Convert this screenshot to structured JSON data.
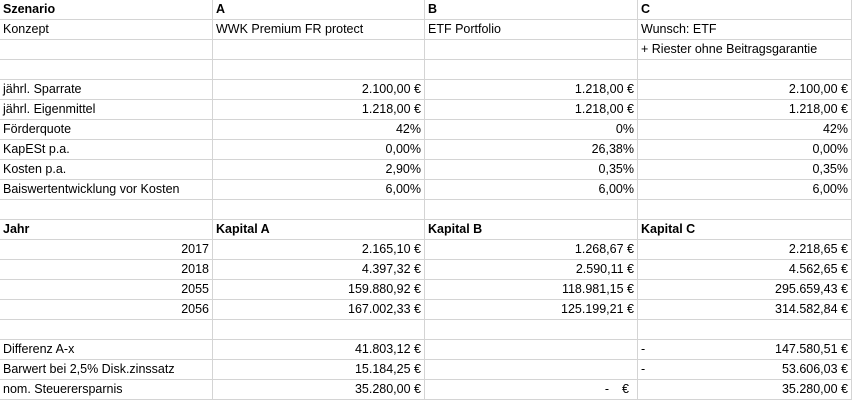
{
  "header": {
    "scenario_label": "Szenario",
    "scenario_a": "A",
    "scenario_b": "B",
    "scenario_c": "C",
    "concept_label": "Konzept",
    "concept_a": "WWK Premium FR protect",
    "concept_b": "ETF Portfolio",
    "concept_c": "Wunsch: ETF",
    "concept_c_extra": "+ Riester ohne Beitragsgarantie"
  },
  "params": [
    {
      "label": "jährl. Sparrate",
      "a": "2.100,00 €",
      "b": "1.218,00 €",
      "c": "2.100,00 €"
    },
    {
      "label": "jährl. Eigenmittel",
      "a": "1.218,00 €",
      "b": "1.218,00 €",
      "c": "1.218,00 €"
    },
    {
      "label": "Förderquote",
      "a": "42%",
      "b": "0%",
      "c": "42%"
    },
    {
      "label": "KapESt p.a.",
      "a": "0,00%",
      "b": "26,38%",
      "c": "0,00%"
    },
    {
      "label": "Kosten p.a.",
      "a": "2,90%",
      "b": "0,35%",
      "c": "0,35%"
    },
    {
      "label": "Baiswertentwicklung vor Kosten",
      "a": "6,00%",
      "b": "6,00%",
      "c": "6,00%"
    }
  ],
  "capital_header": {
    "year_label": "Jahr",
    "a": "Kapital A",
    "b": "Kapital B",
    "c": "Kapital C"
  },
  "capital_rows": [
    {
      "year": "2017",
      "a": "2.165,10 €",
      "b": "1.268,67 €",
      "c": "2.218,65 €"
    },
    {
      "year": "2018",
      "a": "4.397,32 €",
      "b": "2.590,11 €",
      "c": "4.562,65 €"
    },
    {
      "year": "2055",
      "a": "159.880,92 €",
      "b": "118.981,15 €",
      "c": "295.659,43 €"
    },
    {
      "year": "2056",
      "a": "167.002,33 €",
      "b": "125.199,21 €",
      "c": "314.582,84 €"
    }
  ],
  "summary": [
    {
      "label": "Differenz A-x",
      "a": "41.803,12 €",
      "b_left": "",
      "b_right": "",
      "c_left": "-",
      "c": "147.580,51 €"
    },
    {
      "label": "Barwert bei 2,5% Disk.zinssatz",
      "a": "15.184,25 €",
      "b_left": "",
      "b_right": "",
      "c_left": "-",
      "c": "53.606,03 €"
    },
    {
      "label": "nom. Steuerersparnis",
      "a": "35.280,00 €",
      "b_left": "-",
      "b_right": "€",
      "c_left": "",
      "c": "35.280,00 €"
    }
  ]
}
